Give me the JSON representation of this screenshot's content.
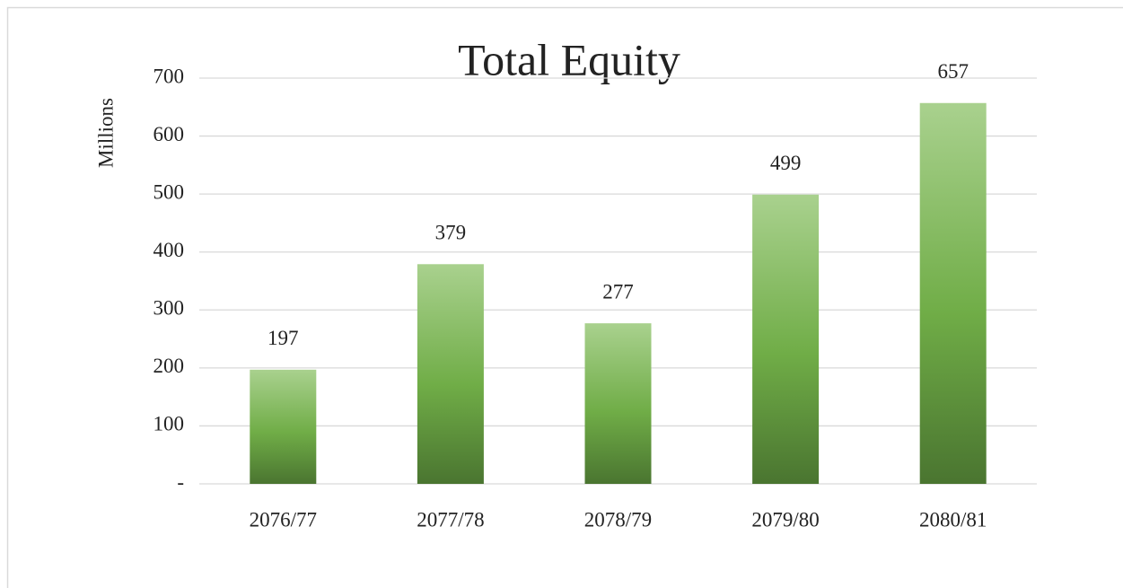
{
  "chart_data": {
    "type": "bar",
    "title": "Total Equity",
    "y_label": "Millions",
    "categories": [
      "2076/77",
      "2077/78",
      "2078/79",
      "2079/80",
      "2080/81"
    ],
    "values": [
      197,
      379,
      277,
      499,
      657
    ],
    "color": "#70ad47",
    "ylim": [
      0,
      700
    ],
    "yticks": [
      {
        "value": 0,
        "label": "-"
      },
      100,
      200,
      300,
      400,
      500,
      600,
      700
    ],
    "grid": true
  }
}
